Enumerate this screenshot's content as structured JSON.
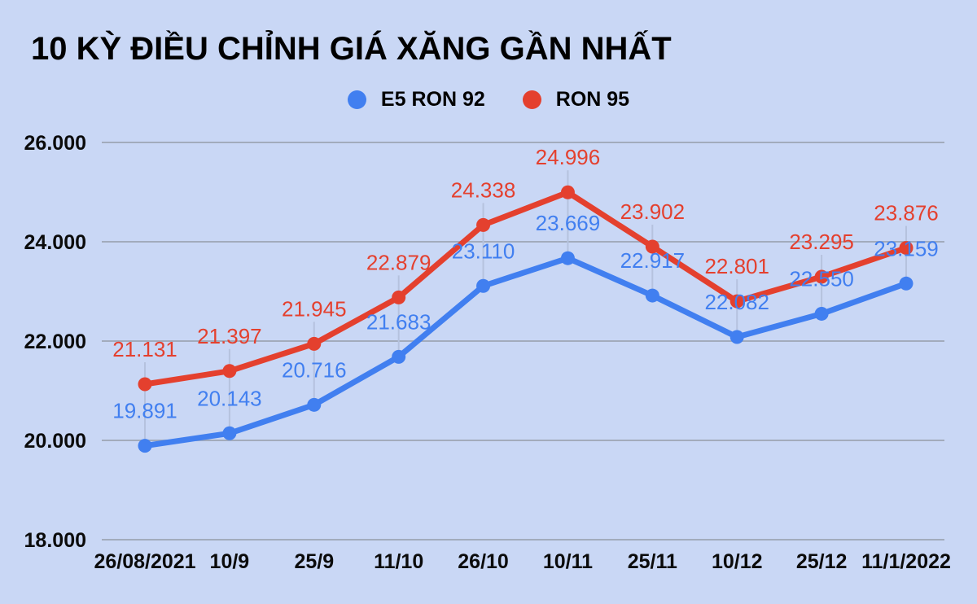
{
  "title": {
    "text": "10 KỲ ĐIỀU CHỈNH GIÁ XĂNG GẦN NHẤT"
  },
  "legend": {
    "items": [
      {
        "label": "E5 RON 92",
        "color": "#417FF0"
      },
      {
        "label": "RON 95",
        "color": "#E4402E"
      }
    ]
  },
  "colors": {
    "background": "#C9D7F5",
    "grid": "#A2ABBC",
    "leader": "#B5C2DE",
    "text": "#0B0B0B"
  },
  "chart_data": {
    "type": "line",
    "title": "10 KỲ ĐIỀU CHỈNH GIÁ XĂNG GẦN NHẤT",
    "categories": [
      "26/08/2021",
      "10/9",
      "25/9",
      "11/10",
      "26/10",
      "10/11",
      "25/11",
      "10/12",
      "25/12",
      "11/1/2022"
    ],
    "series": [
      {
        "name": "E5 RON 92",
        "color": "#417FF0",
        "values": [
          19891,
          20143,
          20716,
          21683,
          23110,
          23669,
          22917,
          22082,
          22550,
          23159
        ],
        "labels": [
          "19.891",
          "20.143",
          "20.716",
          "21.683",
          "23.110",
          "23.669",
          "22.917",
          "22.082",
          "22.550",
          "23.159"
        ]
      },
      {
        "name": "RON 95",
        "color": "#E4402E",
        "values": [
          21131,
          21397,
          21945,
          22879,
          24338,
          24996,
          23902,
          22801,
          23295,
          23876
        ],
        "labels": [
          "21.131",
          "21.397",
          "21.945",
          "22.879",
          "24.338",
          "24.996",
          "23.902",
          "22.801",
          "23.295",
          "23.876"
        ]
      }
    ],
    "ylim": [
      18000,
      26000
    ],
    "ytick_step": 2000,
    "ytick_labels": [
      "18.000",
      "20.000",
      "22.000",
      "24.000",
      "26.000"
    ],
    "grid": "horizontal",
    "legend_position": "top-center",
    "point_labels_visible": true
  }
}
